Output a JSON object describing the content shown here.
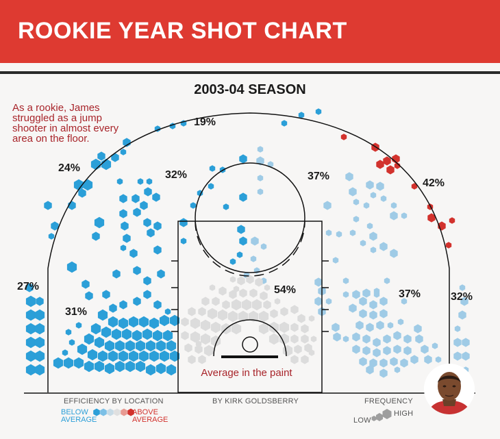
{
  "title": "ROOKIE YEAR SHOT CHART",
  "season": "2003-04 SEASON",
  "note": "As a rookie, James struggled as a jump shooter in almost every area on the floor.",
  "paint_label": "Average in the paint",
  "byline": "BY KIRK GOLDSBERRY",
  "legend": {
    "efficiency_title": "EFFICIENCY BY LOCATION",
    "below_line1": "BELOW",
    "below_line2": "AVERAGE",
    "above_line1": "ABOVE",
    "above_line2": "AVERAGE",
    "frequency_title": "FREQUENCY",
    "low": "LOW",
    "high": "HIGH",
    "colors": [
      "#2b9fd8",
      "#7cc0e6",
      "#c7dbe6",
      "#e0e0e0",
      "#e89a92",
      "#d2322d"
    ]
  },
  "chart_data": {
    "type": "heatmap",
    "title": "2003-04 SEASON",
    "description": "Hexbin shot chart, color = efficiency vs league average, size = frequency",
    "zones": [
      {
        "name": "left corner three",
        "value": "27%",
        "efficiency": "below"
      },
      {
        "name": "left wing three",
        "value": "24%",
        "efficiency": "below"
      },
      {
        "name": "top of key three",
        "value": "19%",
        "efficiency": "below"
      },
      {
        "name": "right wing three",
        "value": "42%",
        "efficiency": "above"
      },
      {
        "name": "right corner three",
        "value": "32%",
        "efficiency": "below"
      },
      {
        "name": "left midrange",
        "value": "31%",
        "efficiency": "below"
      },
      {
        "name": "left elbow midrange",
        "value": "32%",
        "efficiency": "below"
      },
      {
        "name": "right elbow midrange",
        "value": "37%",
        "efficiency": "below"
      },
      {
        "name": "right baseline midrange",
        "value": "37%",
        "efficiency": "below"
      },
      {
        "name": "paint",
        "value": "54%",
        "efficiency": "average"
      }
    ],
    "colors": {
      "below": "#2b9fd8",
      "slightly_below": "#9fcbe6",
      "average": "#dcdcdc",
      "above": "#d2322d"
    }
  }
}
